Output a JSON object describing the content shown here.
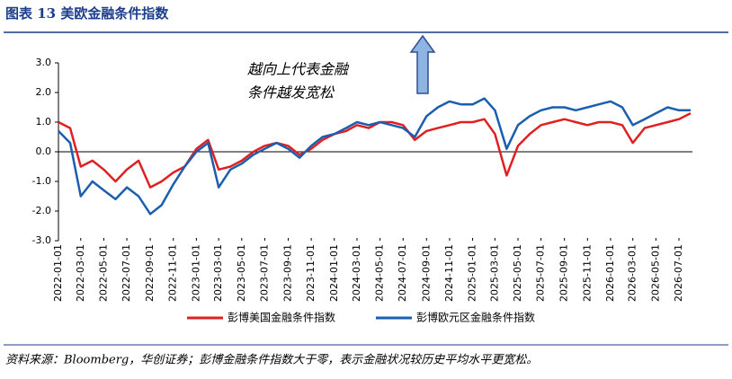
{
  "header": {
    "title": "图表 13    美欧金融条件指数"
  },
  "chart_data": {
    "type": "line",
    "annotation": [
      "越向上代表金融",
      "条件越发宽松"
    ],
    "x": [
      "2022-01-01",
      "2022-02-01",
      "2022-03-01",
      "2022-04-01",
      "2022-05-01",
      "2022-06-01",
      "2022-07-01",
      "2022-08-01",
      "2022-09-01",
      "2022-10-01",
      "2022-11-01",
      "2022-12-01",
      "2023-01-01",
      "2023-02-01",
      "2023-03-01",
      "2023-04-01",
      "2023-05-01",
      "2023-06-01",
      "2023-07-01",
      "2023-08-01",
      "2023-09-01",
      "2023-10-01",
      "2023-11-01",
      "2023-12-01",
      "2024-01-01",
      "2024-02-01",
      "2024-03-01",
      "2024-04-01",
      "2024-05-01",
      "2024-06-01",
      "2024-07-01",
      "2024-08-01",
      "2024-09-01",
      "2024-10-01",
      "2024-11-01",
      "2024-12-01",
      "2025-01-01",
      "2025-02-01",
      "2025-03-01",
      "2025-04-01",
      "2025-05-01",
      "2025-06-01",
      "2025-07-01",
      "2025-08-01",
      "2025-09-01",
      "2025-10-01",
      "2025-11-01",
      "2025-12-01",
      "2026-01-01",
      "2026-02-01",
      "2026-03-01",
      "2026-04-01",
      "2026-05-01",
      "2026-06-01",
      "2026-07-01",
      "2026-08-01"
    ],
    "series": [
      {
        "name": "彭博美国金融条件指数",
        "color": "#e02020",
        "values": [
          1.0,
          0.8,
          -0.5,
          -0.3,
          -0.6,
          -1.0,
          -0.6,
          -0.3,
          -1.2,
          -1.0,
          -0.7,
          -0.5,
          0.1,
          0.4,
          -0.6,
          -0.5,
          -0.3,
          0.0,
          0.2,
          0.3,
          0.2,
          -0.1,
          0.1,
          0.4,
          0.6,
          0.7,
          0.9,
          0.8,
          1.0,
          1.0,
          0.9,
          0.4,
          0.7,
          0.8,
          0.9,
          1.0,
          1.0,
          1.1,
          0.6,
          -0.8,
          0.2,
          0.6,
          0.9,
          1.0,
          1.1,
          1.0,
          0.9,
          1.0,
          1.0,
          0.9,
          0.3,
          0.8,
          0.9,
          1.0,
          1.1,
          1.3
        ]
      },
      {
        "name": "彭博欧元区金融条件指数",
        "color": "#1a5eb0",
        "values": [
          0.7,
          0.3,
          -1.5,
          -1.0,
          -1.3,
          -1.6,
          -1.2,
          -1.5,
          -2.1,
          -1.8,
          -1.1,
          -0.5,
          0.0,
          0.3,
          -1.2,
          -0.6,
          -0.4,
          -0.1,
          0.1,
          0.3,
          0.1,
          -0.2,
          0.2,
          0.5,
          0.6,
          0.8,
          1.0,
          0.9,
          1.0,
          0.9,
          0.8,
          0.5,
          1.2,
          1.5,
          1.7,
          1.6,
          1.6,
          1.8,
          1.4,
          0.1,
          0.9,
          1.2,
          1.4,
          1.5,
          1.5,
          1.4,
          1.5,
          1.6,
          1.7,
          1.5,
          0.9,
          1.1,
          1.3,
          1.5,
          1.4,
          1.4
        ]
      }
    ],
    "xticks": [
      "2022-01-01",
      "2022-03-01",
      "2022-05-01",
      "2022-07-01",
      "2022-09-01",
      "2022-11-01",
      "2023-01-01",
      "2023-03-01",
      "2023-05-01",
      "2023-07-01",
      "2023-09-01",
      "2023-11-01",
      "2024-01-01",
      "2024-03-01",
      "2024-05-01",
      "2024-07-01",
      "2024-09-01",
      "2024-11-01",
      "2025-01-01",
      "2025-03-01",
      "2025-05-01",
      "2025-07-01",
      "2025-09-01",
      "2025-11-01",
      "2026-01-01",
      "2026-03-01",
      "2026-05-01",
      "2026-07-01"
    ],
    "ylim": [
      -3,
      3
    ],
    "yticks": [
      {
        "value": -3,
        "label": "-3.0"
      },
      {
        "value": -2,
        "label": "-2.0"
      },
      {
        "value": -1,
        "label": "-1.0"
      },
      {
        "value": 0,
        "label": "0.0"
      },
      {
        "value": 1,
        "label": "1.0"
      },
      {
        "value": 2,
        "label": "2.0"
      },
      {
        "value": 3,
        "label": "3.0"
      }
    ],
    "legend": "bottom"
  },
  "footer": {
    "source": "资料来源：Bloomberg，华创证券；彭博金融条件指数大于零，表示金融状况较历史平均水平更宽松。"
  }
}
